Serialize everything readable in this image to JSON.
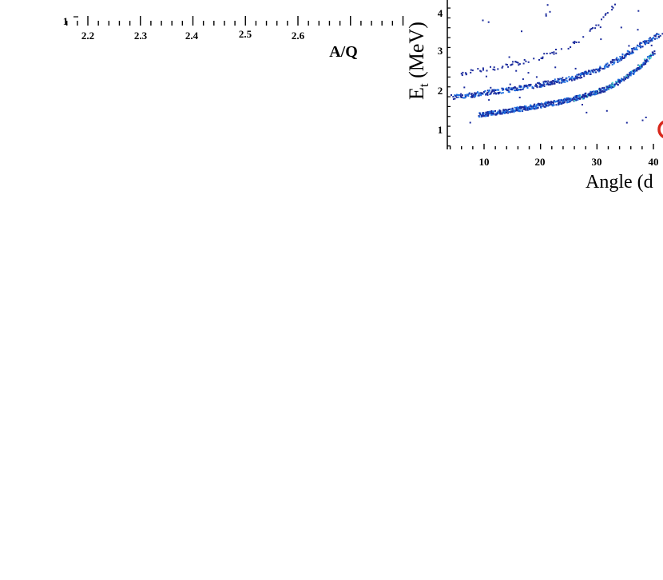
{
  "chart_data": [
    {
      "type": "scatter",
      "panel": "left (cropped)",
      "xlabel": "A/Q",
      "x_ticks": [
        "2.2",
        "2.3",
        "2.4",
        "2.5",
        "2.6"
      ],
      "y_ticks_visible": [
        "1"
      ],
      "xlim": [
        2.15,
        2.75
      ],
      "grid": false
    },
    {
      "type": "heatmap",
      "panel": "right (cropped)",
      "ylabel_main": "E",
      "ylabel_sub": "t",
      "ylabel_rest": " (MeV)",
      "xlabel": "Angle (d",
      "x_ticks": [
        "10",
        "20",
        "30",
        "40"
      ],
      "y_ticks": [
        "1",
        "2",
        "3",
        "4"
      ],
      "xlim": [
        4,
        42
      ],
      "ylim": [
        0.6,
        4.3
      ],
      "grid": false,
      "loci": [
        {
          "points": [
            [
              5,
              2.45
            ],
            [
              10,
              2.55
            ],
            [
              15,
              2.7
            ],
            [
              20,
              2.88
            ],
            [
              25,
              3.15
            ],
            [
              28,
              3.45
            ],
            [
              31,
              3.85
            ],
            [
              33,
              4.2
            ]
          ],
          "density": "low"
        },
        {
          "points": [
            [
              4,
              1.85
            ],
            [
              8,
              1.92
            ],
            [
              12,
              2.0
            ],
            [
              16,
              2.08
            ],
            [
              20,
              2.18
            ],
            [
              25,
              2.32
            ],
            [
              30,
              2.55
            ],
            [
              34,
              2.85
            ],
            [
              38,
              3.2
            ],
            [
              41,
              3.45
            ]
          ],
          "density": "medium"
        },
        {
          "points": [
            [
              9,
              1.4
            ],
            [
              12,
              1.47
            ],
            [
              16,
              1.55
            ],
            [
              20,
              1.65
            ],
            [
              24,
              1.75
            ],
            [
              28,
              1.9
            ],
            [
              32,
              2.1
            ],
            [
              35,
              2.35
            ],
            [
              38,
              2.7
            ],
            [
              40,
              3.0
            ]
          ],
          "density": "high"
        }
      ],
      "colors": {
        "low": "#1a2a9c",
        "mid": "#1e6fe0",
        "high": "#3fd1c9",
        "peak": "#8fe8b0"
      }
    }
  ]
}
